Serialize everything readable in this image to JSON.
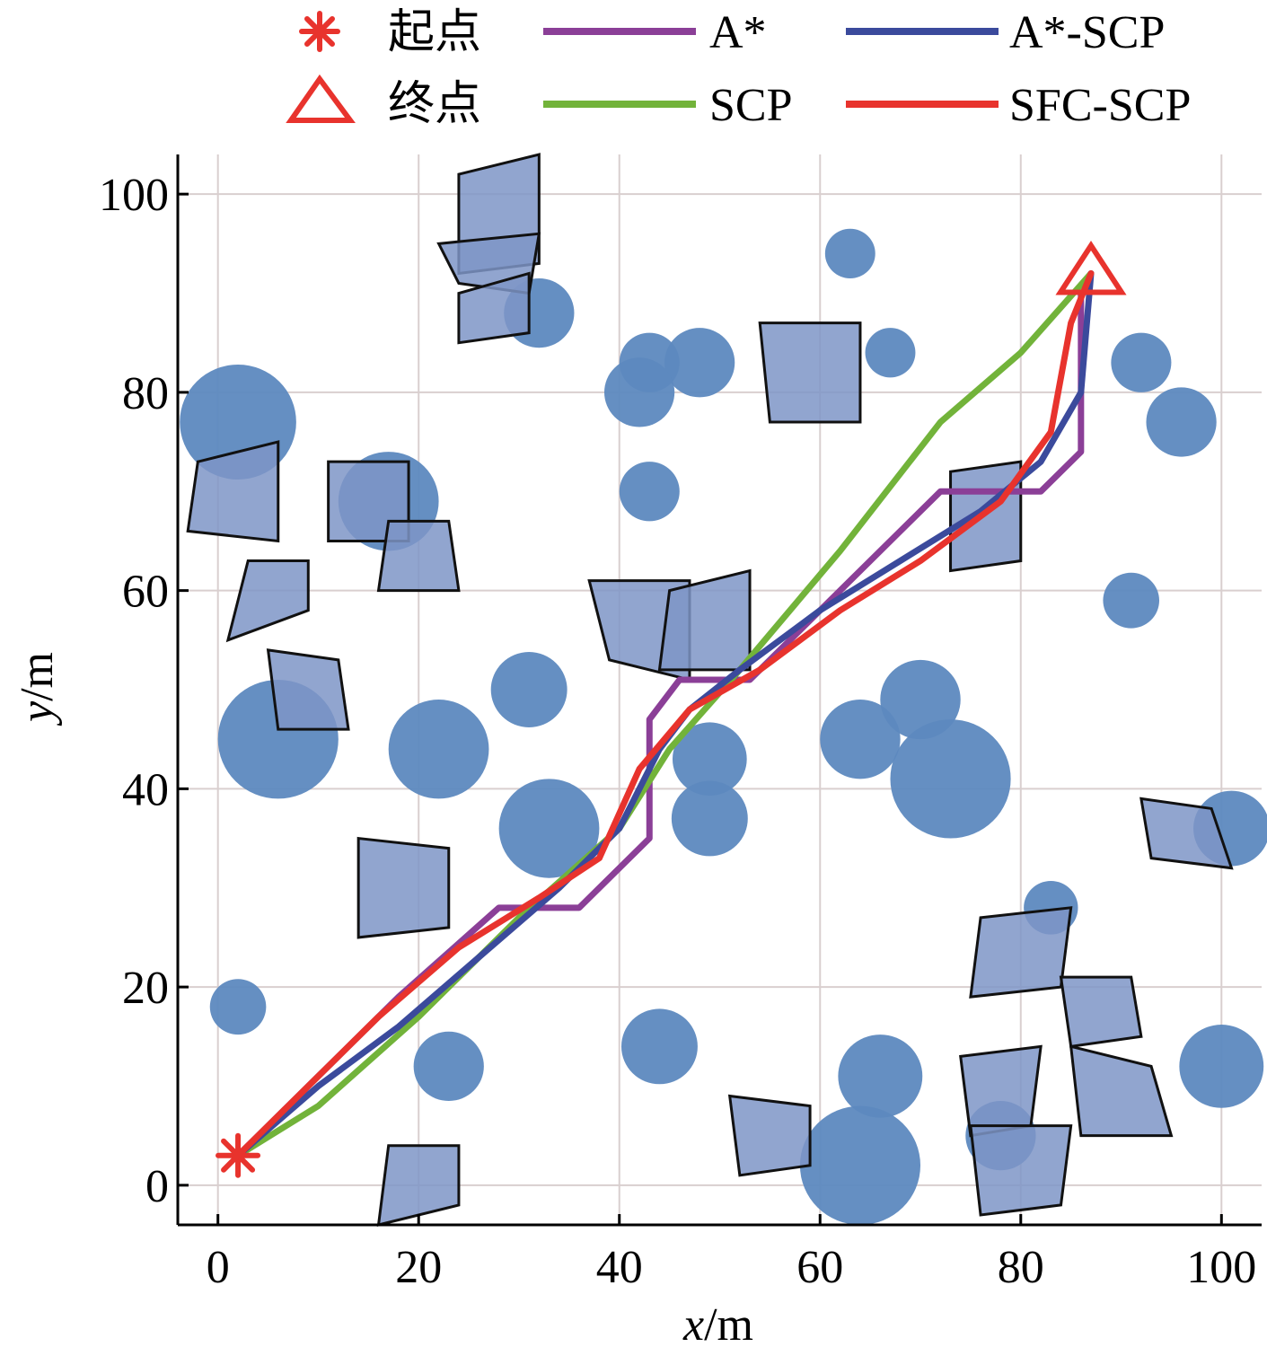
{
  "chart_data": {
    "type": "line",
    "xlabel_var": "x",
    "xlabel_unit": "/m",
    "ylabel_var": "y",
    "ylabel_unit": "/m",
    "xlim": [
      -4,
      104
    ],
    "ylim": [
      -4,
      104
    ],
    "xticks": [
      0,
      20,
      40,
      60,
      80,
      100
    ],
    "yticks": [
      0,
      20,
      40,
      60,
      80,
      100
    ],
    "grid": true,
    "legend_position": "top",
    "markers": {
      "start": {
        "label": "起点",
        "x": 2,
        "y": 3,
        "color": "#e8332d"
      },
      "goal": {
        "label": "终点",
        "x": 87,
        "y": 91,
        "color": "#e8332d"
      }
    },
    "series": [
      {
        "name": "A*",
        "color": "#8b3f97",
        "points": [
          [
            2,
            3
          ],
          [
            12,
            13
          ],
          [
            18,
            19
          ],
          [
            28,
            28
          ],
          [
            36,
            28
          ],
          [
            43,
            35
          ],
          [
            43,
            47
          ],
          [
            46,
            51
          ],
          [
            53,
            51
          ],
          [
            72,
            70
          ],
          [
            82,
            70
          ],
          [
            86,
            74
          ],
          [
            86,
            90
          ]
        ]
      },
      {
        "name": "A*-SCP",
        "color": "#3b4a9c",
        "points": [
          [
            2,
            3
          ],
          [
            10,
            10
          ],
          [
            18,
            16
          ],
          [
            26,
            23
          ],
          [
            34,
            30
          ],
          [
            40,
            36
          ],
          [
            44,
            44
          ],
          [
            47,
            48
          ],
          [
            52,
            52
          ],
          [
            60,
            58
          ],
          [
            68,
            63
          ],
          [
            76,
            68
          ],
          [
            82,
            73
          ],
          [
            86,
            80
          ],
          [
            87,
            92
          ]
        ]
      },
      {
        "name": "SCP",
        "color": "#72b33a",
        "points": [
          [
            2,
            3
          ],
          [
            10,
            8
          ],
          [
            20,
            17
          ],
          [
            30,
            27
          ],
          [
            40,
            36
          ],
          [
            45,
            44
          ],
          [
            52,
            52
          ],
          [
            62,
            64
          ],
          [
            72,
            77
          ],
          [
            80,
            84
          ],
          [
            87,
            92
          ]
        ]
      },
      {
        "name": "SFC-SCP",
        "color": "#e8332d",
        "points": [
          [
            2,
            3
          ],
          [
            9,
            10
          ],
          [
            16,
            17
          ],
          [
            24,
            24
          ],
          [
            32,
            29
          ],
          [
            38,
            33
          ],
          [
            42,
            42
          ],
          [
            47,
            48
          ],
          [
            54,
            52
          ],
          [
            62,
            58
          ],
          [
            70,
            63
          ],
          [
            78,
            69
          ],
          [
            83,
            76
          ],
          [
            85,
            87
          ],
          [
            87,
            92
          ]
        ]
      }
    ],
    "circle_obstacles": [
      [
        32,
        88,
        3.5
      ],
      [
        63,
        94,
        2.5
      ],
      [
        43,
        83,
        3
      ],
      [
        48,
        83,
        3.5
      ],
      [
        42,
        80,
        3.5
      ],
      [
        67,
        84,
        2.5
      ],
      [
        92,
        83,
        3
      ],
      [
        96,
        77,
        3.5
      ],
      [
        2,
        77,
        5.8
      ],
      [
        17,
        69,
        5
      ],
      [
        43,
        70,
        3
      ],
      [
        91,
        59,
        2.8
      ],
      [
        31,
        50,
        3.8
      ],
      [
        6,
        45,
        6
      ],
      [
        22,
        44,
        5
      ],
      [
        49,
        43,
        3.7
      ],
      [
        64,
        45,
        4
      ],
      [
        70,
        49,
        4
      ],
      [
        73,
        41,
        6
      ],
      [
        33,
        36,
        5
      ],
      [
        49,
        37,
        3.8
      ],
      [
        83,
        28,
        2.7
      ],
      [
        101,
        36,
        3.8
      ],
      [
        2,
        18,
        2.8
      ],
      [
        23,
        12,
        3.5
      ],
      [
        44,
        14,
        3.8
      ],
      [
        66,
        11,
        4.2
      ],
      [
        64,
        2,
        6
      ],
      [
        78,
        5,
        3.5
      ],
      [
        100,
        12,
        4.2
      ]
    ],
    "polygon_obstacles": [
      [
        [
          24,
          102
        ],
        [
          32,
          104
        ],
        [
          32,
          93
        ],
        [
          24,
          92
        ]
      ],
      [
        [
          22,
          95
        ],
        [
          32,
          96
        ],
        [
          31,
          90
        ],
        [
          24,
          91
        ]
      ],
      [
        [
          24,
          90
        ],
        [
          31,
          92
        ],
        [
          31,
          86
        ],
        [
          24,
          85
        ]
      ],
      [
        [
          54,
          87
        ],
        [
          64,
          87
        ],
        [
          64,
          77
        ],
        [
          55,
          77
        ]
      ],
      [
        [
          73,
          72
        ],
        [
          80,
          73
        ],
        [
          80,
          63
        ],
        [
          73,
          62
        ]
      ],
      [
        [
          -2,
          73
        ],
        [
          6,
          75
        ],
        [
          6,
          65
        ],
        [
          -3,
          66
        ]
      ],
      [
        [
          11,
          73
        ],
        [
          19,
          73
        ],
        [
          19,
          65
        ],
        [
          11,
          65
        ]
      ],
      [
        [
          17,
          67
        ],
        [
          23,
          67
        ],
        [
          24,
          60
        ],
        [
          16,
          60
        ]
      ],
      [
        [
          3,
          63
        ],
        [
          9,
          63
        ],
        [
          9,
          58
        ],
        [
          1,
          55
        ]
      ],
      [
        [
          37,
          61
        ],
        [
          47,
          61
        ],
        [
          47,
          51
        ],
        [
          39,
          53
        ]
      ],
      [
        [
          45,
          60
        ],
        [
          53,
          62
        ],
        [
          53,
          52
        ],
        [
          44,
          52
        ]
      ],
      [
        [
          5,
          54
        ],
        [
          12,
          53
        ],
        [
          13,
          46
        ],
        [
          6,
          46
        ]
      ],
      [
        [
          92,
          39
        ],
        [
          99,
          38
        ],
        [
          101,
          32
        ],
        [
          93,
          33
        ]
      ],
      [
        [
          14,
          35
        ],
        [
          23,
          34
        ],
        [
          23,
          26
        ],
        [
          14,
          25
        ]
      ],
      [
        [
          76,
          27
        ],
        [
          85,
          28
        ],
        [
          84,
          20
        ],
        [
          75,
          19
        ]
      ],
      [
        [
          84,
          21
        ],
        [
          91,
          21
        ],
        [
          92,
          15
        ],
        [
          85,
          14
        ]
      ],
      [
        [
          74,
          13
        ],
        [
          82,
          14
        ],
        [
          81,
          6
        ],
        [
          75,
          5
        ]
      ],
      [
        [
          85,
          14
        ],
        [
          93,
          12
        ],
        [
          95,
          5
        ],
        [
          86,
          5
        ]
      ],
      [
        [
          51,
          9
        ],
        [
          59,
          8
        ],
        [
          59,
          2
        ],
        [
          52,
          1
        ]
      ],
      [
        [
          75,
          6
        ],
        [
          85,
          6
        ],
        [
          84,
          -2
        ],
        [
          76,
          -3
        ]
      ],
      [
        [
          17,
          4
        ],
        [
          24,
          4
        ],
        [
          24,
          -2
        ],
        [
          16,
          -4
        ]
      ]
    ]
  }
}
